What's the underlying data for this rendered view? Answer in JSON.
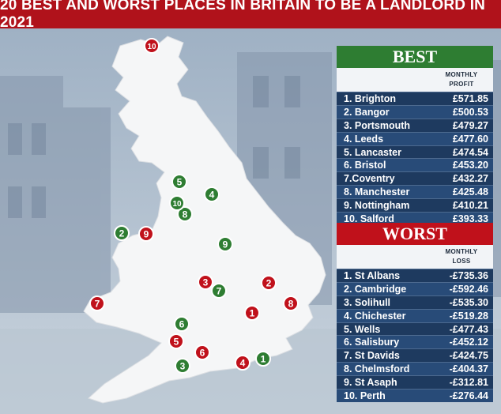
{
  "title": "20 BEST AND WORST PLACES IN BRITAIN TO BE A LANDLORD IN 2021",
  "colors": {
    "best": "#2e7d32",
    "worst": "#c0111b",
    "panel": "#1e3a5f",
    "header": "#b0121b"
  },
  "best": {
    "heading": "BEST",
    "column": "MONTHLY PROFIT",
    "rows": [
      {
        "name": "1. Brighton",
        "value": "£571.85"
      },
      {
        "name": "2. Bangor",
        "value": "£500.53"
      },
      {
        "name": "3. Portsmouth",
        "value": "£479.27"
      },
      {
        "name": "4. Leeds",
        "value": "£477.60"
      },
      {
        "name": "5. Lancaster",
        "value": "£474.54"
      },
      {
        "name": "6. Bristol",
        "value": "£453.20"
      },
      {
        "name": "7.Coventry",
        "value": "£432.27"
      },
      {
        "name": "8. Manchester",
        "value": "£425.48"
      },
      {
        "name": "9. Nottingham",
        "value": "£410.21"
      },
      {
        "name": "10. Salford",
        "value": "£393.33"
      }
    ]
  },
  "worst": {
    "heading": "WORST",
    "column": "MONTHLY LOSS",
    "rows": [
      {
        "name": "1. St Albans",
        "value": "-£735.36"
      },
      {
        "name": "2. Cambridge",
        "value": "-£592.46"
      },
      {
        "name": "3. Solihull",
        "value": "-£535.30"
      },
      {
        "name": "4. Chichester",
        "value": "-£519.28"
      },
      {
        "name": "5. Wells",
        "value": "-£477.43"
      },
      {
        "name": "6. Salisbury",
        "value": "-£452.12"
      },
      {
        "name": "7. St Davids",
        "value": "-£424.75"
      },
      {
        "name": "8. Chelmsford",
        "value": "-£404.37"
      },
      {
        "name": "9. St Asaph",
        "value": "-£312.81"
      },
      {
        "name": "10. Perth",
        "value": "-£276.44"
      }
    ]
  },
  "markers": {
    "best": [
      "1",
      "2",
      "3",
      "4",
      "5",
      "6",
      "7",
      "8",
      "9",
      "10"
    ],
    "worst": [
      "1",
      "2",
      "3",
      "4",
      "5",
      "6",
      "7",
      "8",
      "9",
      "10"
    ]
  }
}
